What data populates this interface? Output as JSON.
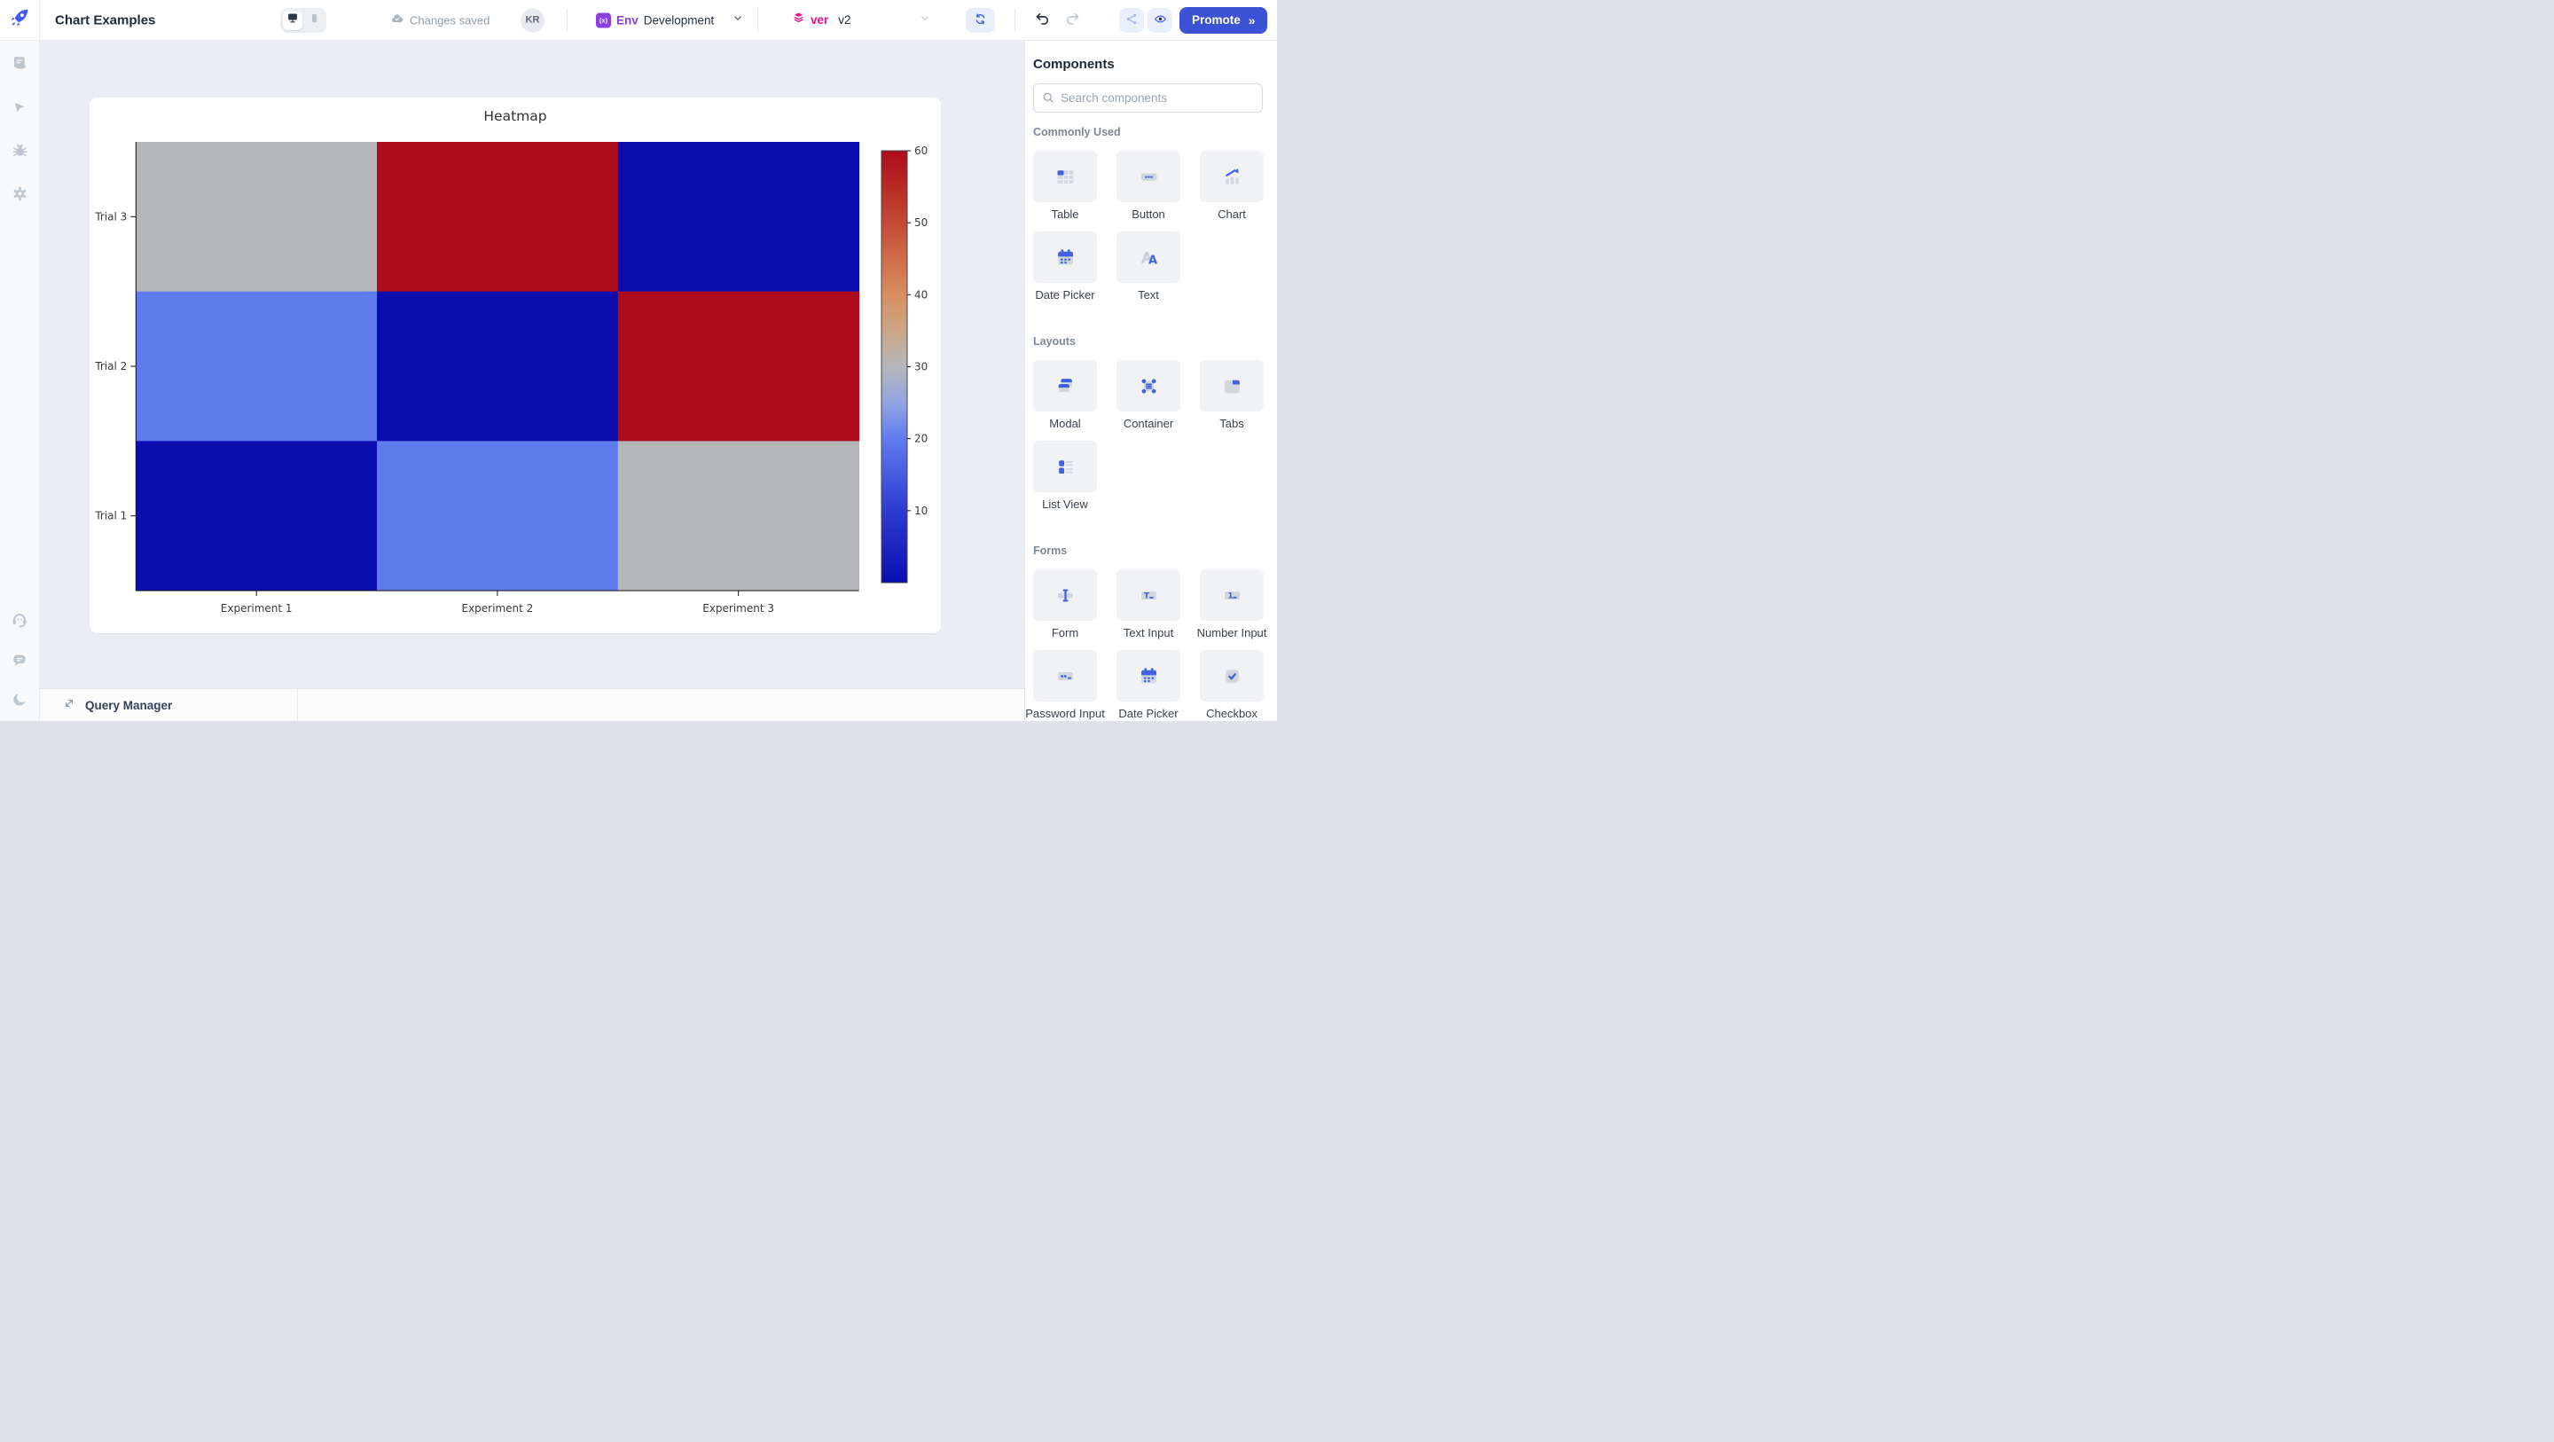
{
  "topbar": {
    "app_title": "Chart Examples",
    "autosave_status": "Changes saved",
    "avatar_initials": "KR",
    "env_label": "Env",
    "env_value": "Development",
    "version_label": "ver",
    "version_value": "v2",
    "promote_label": "Promote",
    "promote_chevron": "»"
  },
  "theme": {
    "accent_blue": "#3f63e0",
    "promote_blue": "#3b52d4",
    "env_purple": "#8a3fe0",
    "version_pink": "#e8138a",
    "canvas_background": "#eaedf1"
  },
  "left_rail": {
    "items": [
      "script",
      "cursor",
      "debug",
      "settings"
    ],
    "footer_items": [
      "support",
      "chat",
      "dark-mode"
    ]
  },
  "bottom_bar": {
    "query_manager_label": "Query Manager"
  },
  "chart_data": {
    "type": "heatmap",
    "title": "Heatmap",
    "x_categories": [
      "Experiment 1",
      "Experiment 2",
      "Experiment 3"
    ],
    "rows_top_to_bottom": [
      "Trial 3",
      "Trial 2",
      "Trial 1"
    ],
    "matrix": [
      [
        30,
        60,
        0
      ],
      [
        20,
        0,
        60
      ],
      [
        0,
        20,
        30
      ]
    ],
    "vmin": 0,
    "vmax": 60,
    "colorbar_ticks": [
      10,
      20,
      30,
      40,
      50,
      60
    ],
    "colormap_stops": [
      [
        0,
        "#0b0dae"
      ],
      [
        10,
        "#2e3bd2"
      ],
      [
        20,
        "#5f7cee"
      ],
      [
        25,
        "#93a4e3"
      ],
      [
        30,
        "#b5b7ba"
      ],
      [
        35,
        "#cca687"
      ],
      [
        40,
        "#d88e5f"
      ],
      [
        45,
        "#d06c4a"
      ],
      [
        50,
        "#c24a35"
      ],
      [
        55,
        "#b82a24"
      ],
      [
        60,
        "#ae0c1d"
      ]
    ],
    "legend_position": "right",
    "grid": false
  },
  "components_panel": {
    "title": "Components",
    "search_placeholder": "Search components",
    "sections": [
      {
        "label": "Commonly Used",
        "items": [
          {
            "label": "Table",
            "icon": "table"
          },
          {
            "label": "Button",
            "icon": "button"
          },
          {
            "label": "Chart",
            "icon": "chart"
          },
          {
            "label": "Date Picker",
            "icon": "datepicker"
          },
          {
            "label": "Text",
            "icon": "text"
          }
        ]
      },
      {
        "label": "Layouts",
        "items": [
          {
            "label": "Modal",
            "icon": "modal"
          },
          {
            "label": "Container",
            "icon": "container"
          },
          {
            "label": "Tabs",
            "icon": "tabs"
          },
          {
            "label": "List View",
            "icon": "listview"
          }
        ]
      },
      {
        "label": "Forms",
        "items": [
          {
            "label": "Form",
            "icon": "form"
          },
          {
            "label": "Text Input",
            "icon": "textinput"
          },
          {
            "label": "Number Input",
            "icon": "numberinput"
          },
          {
            "label": "Password Input",
            "icon": "passwordinput"
          },
          {
            "label": "Date Picker",
            "icon": "datepicker"
          },
          {
            "label": "Checkbox",
            "icon": "checkbox"
          }
        ]
      }
    ]
  }
}
